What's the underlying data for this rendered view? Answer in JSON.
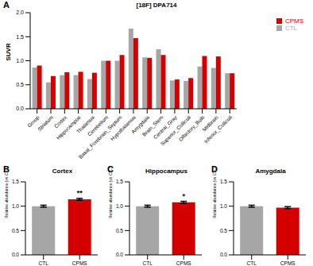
{
  "chart_data": [
    {
      "type": "bar",
      "panel_label": "A",
      "title": "[18F] DPA714",
      "y_label": "SUVR",
      "legend": "right",
      "grid": false,
      "categories": [
        "Group",
        "Striatum",
        "Cortex",
        "Hippocampus",
        "Thalamus",
        "Cerebellum",
        "Basal_Forebrain_Septum",
        "Hypothalamus",
        "Amygdala",
        "Brain_Stem",
        "Central_Gray",
        "Superior_Colliculi",
        "Olfactory_Bulb",
        "Midbrain",
        "Inferior_Colliculi"
      ],
      "series": [
        {
          "name": "CTL",
          "color": "#a6a6a6",
          "values": [
            0.86,
            0.55,
            0.7,
            0.7,
            0.62,
            1.0,
            1.0,
            1.67,
            1.07,
            1.24,
            0.59,
            0.58,
            0.88,
            0.85,
            0.74
          ]
        },
        {
          "name": "CPMS",
          "color": "#d40000",
          "values": [
            0.9,
            0.68,
            0.76,
            0.77,
            0.75,
            1.0,
            1.12,
            1.47,
            1.06,
            1.12,
            0.61,
            0.64,
            1.1,
            1.09,
            0.74
          ]
        }
      ],
      "ylim": [
        0,
        2
      ],
      "yticks": [
        {
          "value": 0,
          "label": "0.0"
        },
        {
          "value": 0.5,
          "label": "0.5"
        },
        {
          "value": 1,
          "label": "1.0"
        },
        {
          "value": 1.5,
          "label": "1.5"
        },
        {
          "value": 2,
          "label": "2.0"
        }
      ]
    },
    {
      "type": "bar",
      "panel_label": "B",
      "title": "Cortex",
      "y_label": "Relative abundance (vs CTL)",
      "grid": false,
      "categories": [
        "CTL",
        "CPMS"
      ],
      "values": [
        1.0,
        1.14
      ],
      "errors": [
        0.02,
        0.02
      ],
      "colors": [
        "#a6a6a6",
        "#d40000"
      ],
      "ylim": [
        0,
        1.5
      ],
      "yticks": [
        {
          "value": 0,
          "label": "0.0"
        },
        {
          "value": 0.5,
          "label": "0.5"
        },
        {
          "value": 1,
          "label": "1.0"
        },
        {
          "value": 1.5,
          "label": "1.5"
        }
      ],
      "annotations": [
        {
          "category": "CPMS",
          "text": "**"
        }
      ]
    },
    {
      "type": "bar",
      "panel_label": "C",
      "title": "Hippocampus",
      "y_label": "Relative abundance (vs CTL)",
      "grid": false,
      "categories": [
        "CTL",
        "CPMS"
      ],
      "values": [
        1.0,
        1.08
      ],
      "errors": [
        0.02,
        0.02
      ],
      "colors": [
        "#a6a6a6",
        "#d40000"
      ],
      "ylim": [
        0,
        1.5
      ],
      "yticks": [
        {
          "value": 0,
          "label": "0.0"
        },
        {
          "value": 0.5,
          "label": "0.5"
        },
        {
          "value": 1,
          "label": "1.0"
        },
        {
          "value": 1.5,
          "label": "1.5"
        }
      ],
      "annotations": [
        {
          "category": "CPMS",
          "text": "*"
        }
      ]
    },
    {
      "type": "bar",
      "panel_label": "D",
      "title": "Amygdala",
      "y_label": "Relative abundance (vs CTL)",
      "grid": false,
      "categories": [
        "CTL",
        "CPMS"
      ],
      "values": [
        1.0,
        0.97
      ],
      "errors": [
        0.02,
        0.02
      ],
      "colors": [
        "#a6a6a6",
        "#d40000"
      ],
      "ylim": [
        0,
        1.5
      ],
      "yticks": [
        {
          "value": 0,
          "label": "0.0"
        },
        {
          "value": 0.5,
          "label": "0.5"
        },
        {
          "value": 1,
          "label": "1.0"
        },
        {
          "value": 1.5,
          "label": "1.5"
        }
      ],
      "annotations": []
    }
  ]
}
